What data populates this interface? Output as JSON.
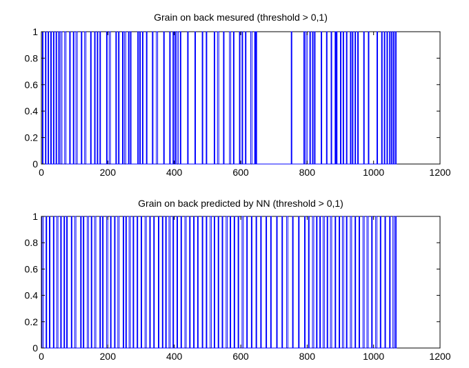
{
  "chart_data": [
    {
      "type": "line",
      "title": "Grain  on back mesured (threshold > 0,1)",
      "xlim": [
        0,
        1200
      ],
      "ylim": [
        0,
        1
      ],
      "xticks": [
        0,
        200,
        400,
        600,
        800,
        1000,
        1200
      ],
      "yticks": [
        0,
        0.2,
        0.4,
        0.6,
        0.8,
        1
      ],
      "xtick_labels": [
        "0",
        "200",
        "400",
        "600",
        "800",
        "1000",
        "1200"
      ],
      "ytick_labels": [
        "0",
        "0.2",
        "0.4",
        "0.6",
        "0.8",
        "1"
      ],
      "grid": false,
      "color": "#0000ff",
      "series": [
        {
          "description": "binary 0/1 signal",
          "segments_at_1": [
            [
              3,
              5
            ],
            [
              12,
              14
            ],
            [
              20,
              22
            ],
            [
              28,
              30
            ],
            [
              36,
              38
            ],
            [
              44,
              46
            ],
            [
              52,
              54
            ],
            [
              58,
              62
            ],
            [
              70,
              74
            ],
            [
              85,
              87
            ],
            [
              96,
              98
            ],
            [
              104,
              108
            ],
            [
              120,
              122
            ],
            [
              130,
              134
            ],
            [
              148,
              150
            ],
            [
              160,
              162
            ],
            [
              168,
              170
            ],
            [
              176,
              178
            ],
            [
              196,
              198
            ],
            [
              204,
              208
            ],
            [
              224,
              226
            ],
            [
              232,
              234
            ],
            [
              244,
              246
            ],
            [
              250,
              254
            ],
            [
              262,
              264
            ],
            [
              268,
              270
            ],
            [
              290,
              292
            ],
            [
              296,
              298
            ],
            [
              304,
              306
            ],
            [
              316,
              318
            ],
            [
              334,
              336
            ],
            [
              346,
              350
            ],
            [
              368,
              370
            ],
            [
              386,
              388
            ],
            [
              396,
              398
            ],
            [
              402,
              404
            ],
            [
              408,
              412
            ],
            [
              418,
              420
            ],
            [
              440,
              442
            ],
            [
              462,
              464
            ],
            [
              484,
              486
            ],
            [
              496,
              498
            ],
            [
              520,
              522
            ],
            [
              530,
              534
            ],
            [
              548,
              550
            ],
            [
              566,
              570
            ],
            [
              578,
              580
            ],
            [
              596,
              598
            ],
            [
              604,
              606
            ],
            [
              614,
              616
            ],
            [
              630,
              634
            ],
            [
              642,
              644
            ],
            [
              646,
              648
            ],
            [
              752,
              754
            ],
            [
              790,
              792
            ],
            [
              796,
              800
            ],
            [
              808,
              810
            ],
            [
              816,
              818
            ],
            [
              822,
              824
            ],
            [
              842,
              844
            ],
            [
              858,
              860
            ],
            [
              872,
              874
            ],
            [
              884,
              886
            ],
            [
              888,
              890
            ],
            [
              900,
              902
            ],
            [
              908,
              910
            ],
            [
              918,
              920
            ],
            [
              930,
              932
            ],
            [
              936,
              938
            ],
            [
              944,
              946
            ],
            [
              952,
              954
            ],
            [
              970,
              972
            ],
            [
              984,
              986
            ],
            [
              1010,
              1012
            ],
            [
              1024,
              1026
            ],
            [
              1032,
              1034
            ],
            [
              1040,
              1042
            ],
            [
              1048,
              1050
            ],
            [
              1054,
              1056
            ],
            [
              1060,
              1062
            ],
            [
              1066,
              1068
            ]
          ],
          "x_end": 1070
        }
      ]
    },
    {
      "type": "line",
      "title": "Grain  on back predicted by NN (threshold > 0,1)",
      "xlim": [
        0,
        1200
      ],
      "ylim": [
        0,
        1
      ],
      "xticks": [
        0,
        200,
        400,
        600,
        800,
        1000,
        1200
      ],
      "yticks": [
        0,
        0.2,
        0.4,
        0.6,
        0.8,
        1
      ],
      "xtick_labels": [
        "0",
        "200",
        "400",
        "600",
        "800",
        "1000",
        "1200"
      ],
      "ytick_labels": [
        "0",
        "0.2",
        "0.4",
        "0.6",
        "0.8",
        "1"
      ],
      "grid": false,
      "color": "#0000ff",
      "series": [
        {
          "description": "binary 0/1 signal",
          "segments_at_1": [
            [
              2,
              6
            ],
            [
              14,
              16
            ],
            [
              24,
              26
            ],
            [
              36,
              38
            ],
            [
              46,
              50
            ],
            [
              58,
              60
            ],
            [
              68,
              70
            ],
            [
              76,
              78
            ],
            [
              90,
              92
            ],
            [
              100,
              104
            ],
            [
              118,
              120
            ],
            [
              126,
              128
            ],
            [
              138,
              142
            ],
            [
              150,
              152
            ],
            [
              160,
              164
            ],
            [
              176,
              178
            ],
            [
              184,
              186
            ],
            [
              196,
              200
            ],
            [
              208,
              210
            ],
            [
              220,
              222
            ],
            [
              230,
              234
            ],
            [
              246,
              248
            ],
            [
              254,
              256
            ],
            [
              264,
              268
            ],
            [
              276,
              278
            ],
            [
              288,
              290
            ],
            [
              300,
              302
            ],
            [
              312,
              316
            ],
            [
              326,
              328
            ],
            [
              338,
              340
            ],
            [
              352,
              354
            ],
            [
              364,
              366
            ],
            [
              374,
              376
            ],
            [
              384,
              388
            ],
            [
              396,
              398
            ],
            [
              408,
              410
            ],
            [
              420,
              422
            ],
            [
              432,
              436
            ],
            [
              446,
              448
            ],
            [
              458,
              460
            ],
            [
              470,
              472
            ],
            [
              484,
              486
            ],
            [
              496,
              498
            ],
            [
              508,
              512
            ],
            [
              520,
              522
            ],
            [
              532,
              534
            ],
            [
              544,
              546
            ],
            [
              556,
              560
            ],
            [
              568,
              570
            ],
            [
              580,
              582
            ],
            [
              592,
              594
            ],
            [
              604,
              608
            ],
            [
              618,
              620
            ],
            [
              632,
              634
            ],
            [
              646,
              648
            ],
            [
              660,
              662
            ],
            [
              676,
              678
            ],
            [
              690,
              692
            ],
            [
              708,
              710
            ],
            [
              724,
              726
            ],
            [
              738,
              742
            ],
            [
              756,
              758
            ],
            [
              774,
              776
            ],
            [
              792,
              794
            ],
            [
              804,
              806
            ],
            [
              816,
              820
            ],
            [
              828,
              830
            ],
            [
              838,
              840
            ],
            [
              848,
              852
            ],
            [
              860,
              862
            ],
            [
              870,
              874
            ],
            [
              884,
              886
            ],
            [
              896,
              898
            ],
            [
              906,
              910
            ],
            [
              918,
              920
            ],
            [
              930,
              934
            ],
            [
              944,
              946
            ],
            [
              956,
              958
            ],
            [
              968,
              972
            ],
            [
              980,
              984
            ],
            [
              994,
              996
            ],
            [
              1006,
              1010
            ],
            [
              1020,
              1022
            ],
            [
              1034,
              1036
            ],
            [
              1048,
              1050
            ],
            [
              1058,
              1062
            ],
            [
              1066,
              1068
            ]
          ],
          "x_end": 1070
        }
      ]
    }
  ]
}
